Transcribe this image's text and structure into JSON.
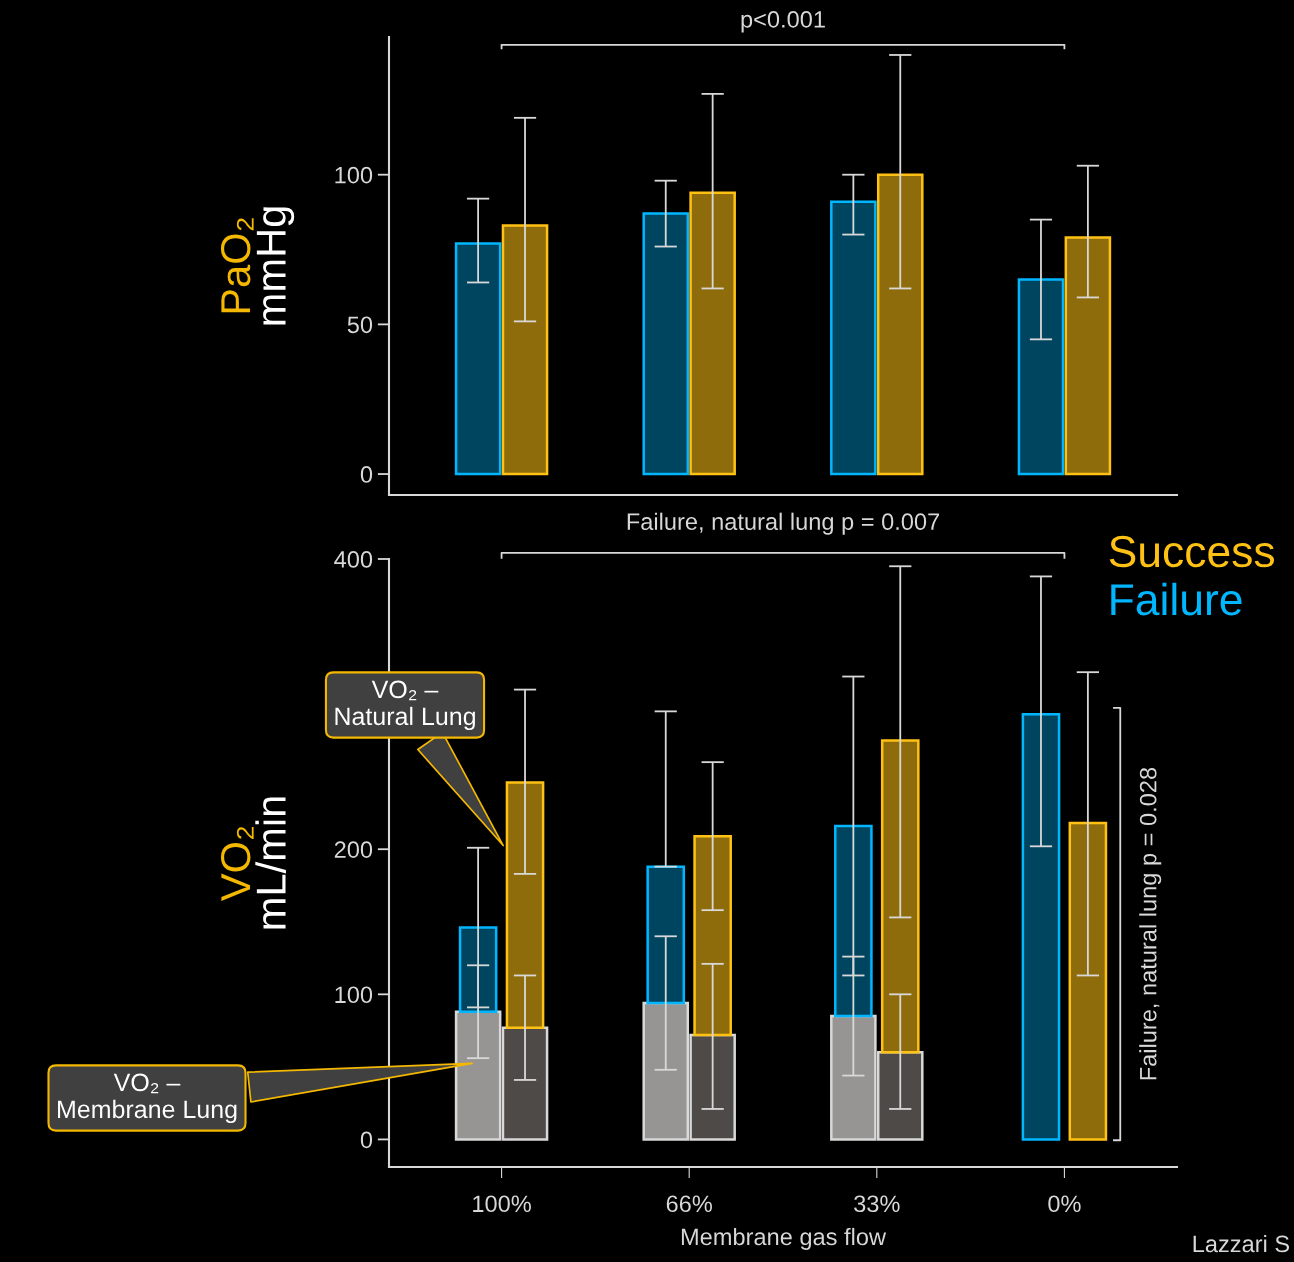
{
  "chart_data": [
    {
      "type": "bar",
      "ylabel": "PaO₂\nmmHg",
      "categories": [
        null,
        null,
        null,
        null
      ],
      "series": [
        {
          "color": "#004560",
          "values": [
            77,
            87,
            91,
            65
          ],
          "errors": [
            [
              64,
              92
            ],
            [
              76,
              98
            ],
            [
              80,
              100
            ],
            [
              45,
              85
            ]
          ]
        },
        {
          "color": "#8f6c0b",
          "values": [
            83,
            94,
            100,
            79
          ],
          "errors": [
            [
              51,
              119
            ],
            [
              62,
              127
            ],
            [
              62,
              140
            ],
            [
              59,
              103
            ]
          ]
        }
      ],
      "ylim": [
        -7,
        146
      ],
      "yticks": [
        0,
        50,
        100
      ],
      "tick_labels": "y",
      "annotations": [
        "p<0.001"
      ]
    },
    {
      "type": "bar",
      "ylabel": "VO₂\nmL/min",
      "xlabel": "Membrane gas flow",
      "categories": [
        "100%",
        "66%",
        "33%",
        "0%"
      ],
      "series": [
        {
          "color": "#979593",
          "values": [
            88,
            94,
            85,
            null
          ],
          "errors": [
            [
              56,
              120
            ],
            [
              48,
              140
            ],
            [
              44,
              126
            ],
            null
          ]
        },
        {
          "color": "#4e4a47",
          "values": [
            77,
            72,
            60,
            null
          ],
          "errors": [
            [
              41,
              113
            ],
            [
              21,
              121
            ],
            [
              21,
              100
            ],
            null
          ]
        },
        {
          "name": "Failure",
          "color": "#004560",
          "base": [
            88,
            94,
            85,
            0
          ],
          "values": [
            58,
            94,
            131,
            293
          ],
          "errors": [
            [
              91,
              201
            ],
            [
              188,
              295
            ],
            [
              113,
              319
            ],
            [
              202,
              388
            ]
          ]
        },
        {
          "name": "Success",
          "color": "#8f6c0b",
          "base": [
            77,
            72,
            60,
            0
          ],
          "values": [
            169,
            137,
            215,
            218
          ],
          "errors": [
            [
              183,
              310
            ],
            [
              158,
              260
            ],
            [
              153,
              395
            ],
            [
              113,
              322
            ]
          ]
        }
      ],
      "ylim": [
        -19,
        400
      ],
      "yticks": [
        0,
        100,
        200,
        400
      ],
      "legend": "top right",
      "annotations": [
        "Failure, natural lung p = 0.007",
        "Failure, natural lung p = 0.028",
        "VO₂ –\nNatural Lung",
        "VO₂ –\nMembrane Lung",
        "Lazzari S"
      ]
    }
  ]
}
